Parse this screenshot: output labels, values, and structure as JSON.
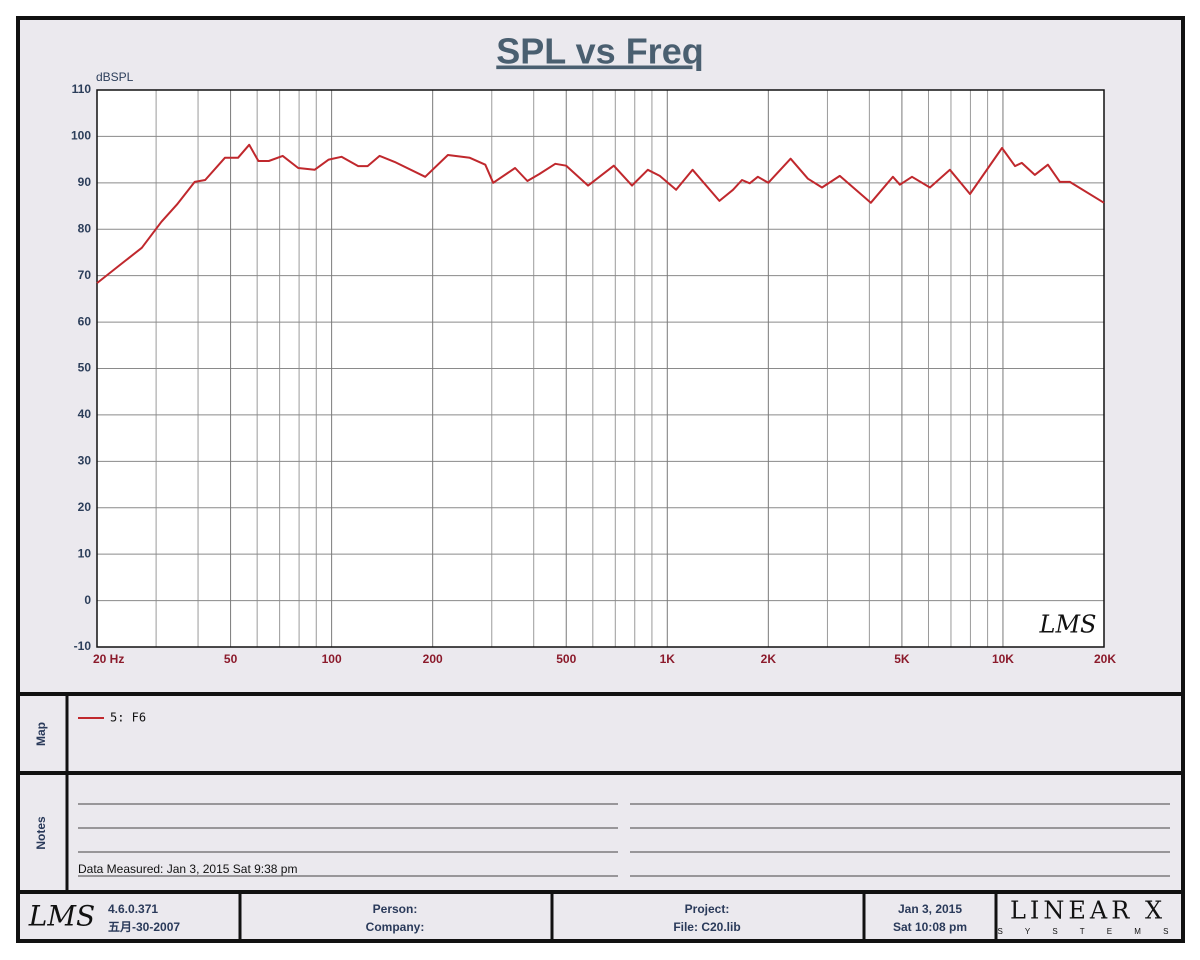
{
  "chart_data": {
    "type": "line",
    "title": "SPL vs Freq",
    "y_label": "dBSPL",
    "xscale": "log",
    "grid": true,
    "xlim": [
      20,
      20000
    ],
    "ylim": [
      -10,
      110
    ],
    "xticks": [
      {
        "value": 20,
        "label": "20  Hz"
      },
      50,
      100,
      200,
      500,
      {
        "value": 1000,
        "label": "1K"
      },
      {
        "value": 2000,
        "label": "2K"
      },
      {
        "value": 5000,
        "label": "5K"
      },
      {
        "value": 10000,
        "label": "10K"
      },
      {
        "value": 20000,
        "label": "20K"
      }
    ],
    "xminorticks": [
      30,
      40,
      60,
      70,
      80,
      90,
      300,
      400,
      600,
      700,
      800,
      900,
      3000,
      4000,
      6000,
      7000,
      8000,
      9000
    ],
    "yticks": [
      -10,
      0,
      10,
      20,
      30,
      40,
      50,
      60,
      70,
      80,
      90,
      100,
      110
    ],
    "x": [
      20,
      23.4,
      27.2,
      31.1,
      34.6,
      39.1,
      42,
      48.1,
      52.6,
      56.8,
      60.5,
      65,
      71.5,
      79.5,
      89,
      98,
      107,
      120,
      128,
      139,
      154,
      190,
      222,
      258,
      287,
      303,
      352,
      383,
      416,
      464,
      500,
      581,
      693,
      785,
      875,
      950,
      1062,
      1190,
      1430,
      1570,
      1670,
      1760,
      1860,
      2000,
      2330,
      2624,
      2890,
      3266,
      4040,
      4700,
      4932,
      5360,
      6058,
      6950,
      7978,
      9932,
      10860,
      11380,
      12440,
      13610,
      14780,
      15820,
      20000
    ],
    "series": [
      {
        "name": "5: F6",
        "color": "#c0282d",
        "values": [
          68.4,
          72.3,
          76,
          81.6,
          85.3,
          90.2,
          90.6,
          95.4,
          95.4,
          98.2,
          94.7,
          94.7,
          95.8,
          93.2,
          92.8,
          95,
          95.6,
          93.6,
          93.6,
          95.8,
          94.5,
          91.3,
          96,
          95.4,
          93.9,
          90,
          93.2,
          90.4,
          91.9,
          94.1,
          93.7,
          89.4,
          93.7,
          89.4,
          92.8,
          91.5,
          88.5,
          92.8,
          86.1,
          88.5,
          90.6,
          89.9,
          91.3,
          90,
          95.2,
          90.9,
          89,
          91.5,
          85.7,
          91.3,
          89.6,
          91.3,
          89,
          92.8,
          87.6,
          97.5,
          93.6,
          94.3,
          91.7,
          93.9,
          90.2,
          90.2,
          85.7
        ]
      }
    ],
    "logo": "LMS"
  },
  "map": {
    "label": "Map"
  },
  "notes": {
    "label": "Notes",
    "measured": "Data Measured: Jan  3, 2015  Sat  9:38 pm"
  },
  "footer": {
    "logo": "LMS",
    "version": "4.6.0.371",
    "build_date": "五月-30-2007",
    "person": "Person:",
    "company": "Company:",
    "project": "Project:",
    "file": "File: C20.lib",
    "date": "Jan  3, 2015",
    "time": "Sat 10:08 pm",
    "brand": "LINEAR X",
    "brand_sub": "S Y S T E M S"
  }
}
